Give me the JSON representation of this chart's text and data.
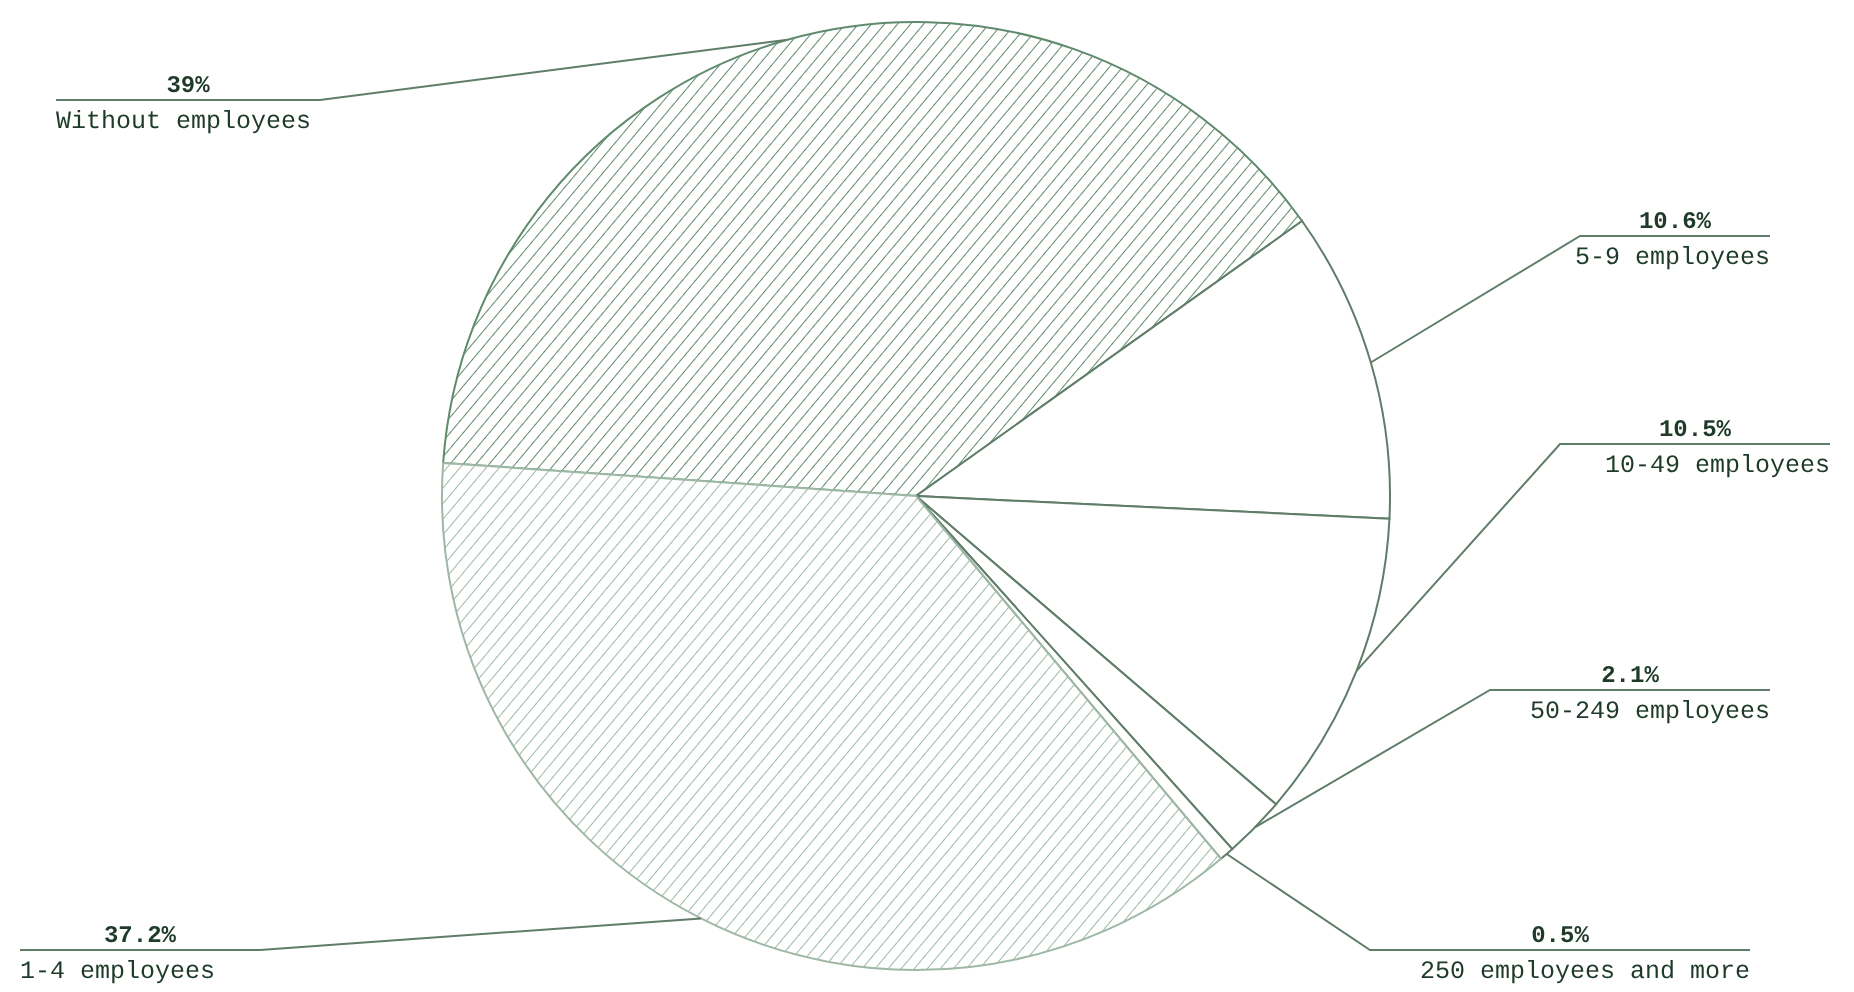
{
  "chart_data": {
    "type": "pie",
    "categories": [
      "Without employees",
      "5-9 employees",
      "10-49 employees",
      "50-249 employees",
      "250 employees and more",
      "1-4 employees"
    ],
    "values": [
      39,
      10.6,
      10.5,
      2.1,
      0.5,
      37.2
    ],
    "value_labels": [
      "39%",
      "10.6%",
      "10.5%",
      "2.1%",
      "0.5%",
      "37.2%"
    ],
    "colors": [
      "#5f8a6c",
      "#ffffff",
      "#ffffff",
      "#ffffff",
      "#ffffff",
      "#9fb8a6"
    ],
    "legend": false
  }
}
